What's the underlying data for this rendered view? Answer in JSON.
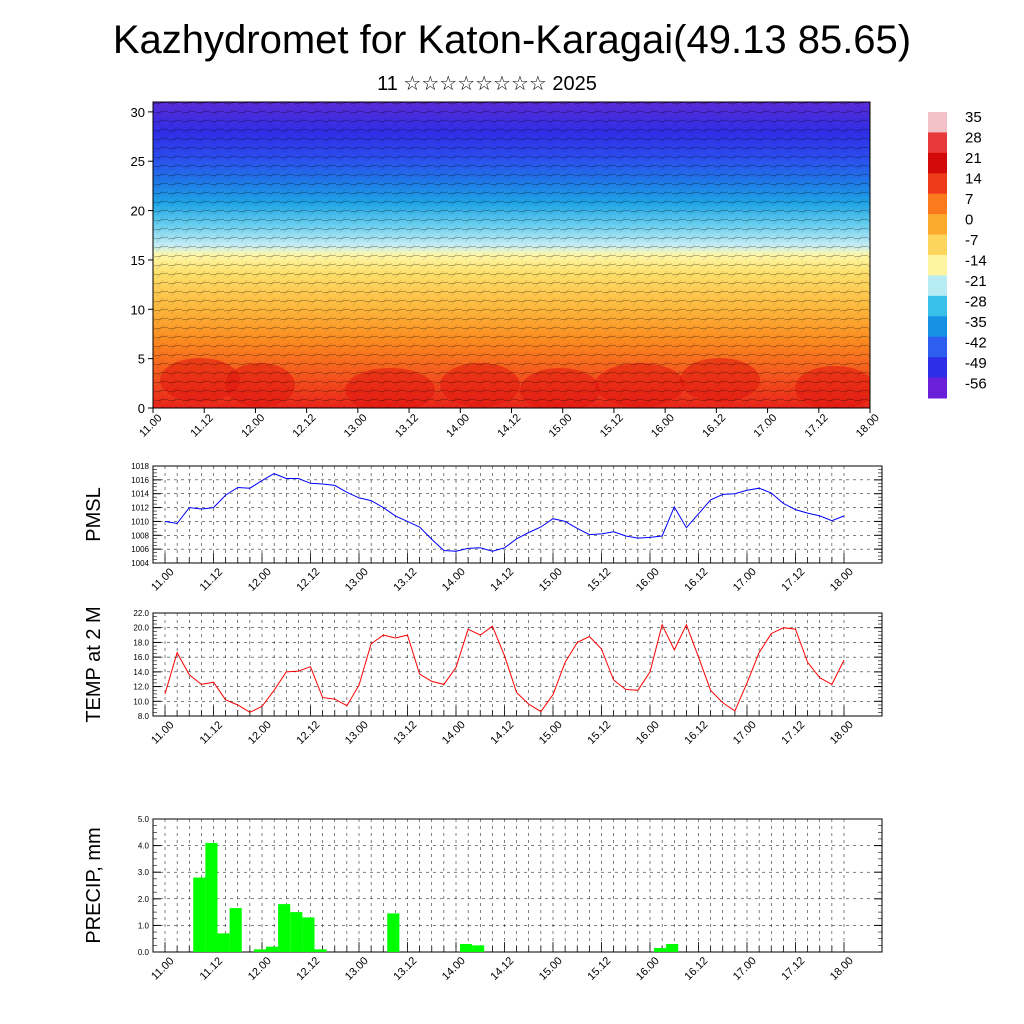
{
  "title": "Kazhydromet for Katon-Karagai(49.13 85.65)",
  "subtitle": "11 ☆☆☆☆☆☆☆☆ 2025",
  "time_labels": [
    "11.00",
    "11.12",
    "12.00",
    "12.12",
    "13.00",
    "13.12",
    "14.00",
    "14.12",
    "15.00",
    "15.12",
    "16.00",
    "16.12",
    "17.00",
    "17.12",
    "18.00"
  ],
  "colors": {
    "pmsl": "#0000ff",
    "temp": "#ff0000",
    "precip": "#00ff00"
  },
  "chart_data": [
    {
      "type": "heatmap",
      "name": "cross-section",
      "description_ylabels": [
        "0",
        "5",
        "10",
        "15",
        "20",
        "25",
        "30"
      ],
      "ylim": [
        0,
        31
      ],
      "colorbar_labels": [
        "35",
        "28",
        "21",
        "14",
        "7",
        "0",
        "-7",
        "-14",
        "-21",
        "-28",
        "-35",
        "-42",
        "-49",
        "-56"
      ],
      "colorbar_colors": [
        "#f3c1c8",
        "#e83a3a",
        "#d40a0a",
        "#ef3a1a",
        "#fb7a1e",
        "#fdab2e",
        "#fdd55c",
        "#fff5a0",
        "#b7ecf5",
        "#39c0ea",
        "#1590e2",
        "#2e5ef0",
        "#2d2fe6",
        "#6a1fd8"
      ]
    },
    {
      "type": "line",
      "ylabel": "PMSL",
      "ylim": [
        1004,
        1018
      ],
      "yticks": [
        "1018",
        "1016",
        "1014",
        "1012",
        "1010",
        "1008",
        "1006",
        "1004"
      ],
      "series": [
        {
          "values": [
            1010.0,
            1009.7,
            1012.0,
            1011.8,
            1012.0,
            1013.8,
            1014.9,
            1014.8,
            1015.9,
            1016.9,
            1016.2,
            1016.2,
            1015.5,
            1015.4,
            1015.2,
            1014.2,
            1013.4,
            1013.0,
            1012.0,
            1010.8,
            1010.0,
            1009.2,
            1007.4,
            1005.8,
            1005.7,
            1006.1,
            1006.2,
            1005.7,
            1006.2,
            1007.5,
            1008.4,
            1009.2,
            1010.4,
            1010.0,
            1009.0,
            1008.1,
            1008.2,
            1008.5,
            1007.9,
            1007.6,
            1007.7,
            1007.9,
            1012.1,
            1009.1,
            1011.1,
            1013.1,
            1013.9,
            1014.0,
            1014.5,
            1014.8,
            1014.1,
            1012.6,
            1011.7,
            1011.2,
            1010.8,
            1010.1,
            1010.8
          ]
        }
      ]
    },
    {
      "type": "line",
      "ylabel": "TEMP at 2 M",
      "ylim": [
        8.0,
        22.0
      ],
      "yticks": [
        "22.0",
        "20.0",
        "18.0",
        "16.0",
        "14.0",
        "12.0",
        "10.0",
        "8.0"
      ],
      "series": [
        {
          "values": [
            11.0,
            16.6,
            13.6,
            12.3,
            12.6,
            10.2,
            9.5,
            8.5,
            9.3,
            11.5,
            14.0,
            14.1,
            14.7,
            10.5,
            10.3,
            9.4,
            12.2,
            17.8,
            19.0,
            18.6,
            19.0,
            13.7,
            12.7,
            12.3,
            14.6,
            19.8,
            19.0,
            20.2,
            16.2,
            11.2,
            9.6,
            8.6,
            10.9,
            15.3,
            18.0,
            18.8,
            17.1,
            12.9,
            11.6,
            11.5,
            14.0,
            20.4,
            17.0,
            20.4,
            16.0,
            11.5,
            9.8,
            8.7,
            12.5,
            16.6,
            19.2,
            20.0,
            19.8,
            15.3,
            13.2,
            12.3,
            15.6
          ]
        }
      ]
    },
    {
      "type": "bar",
      "ylabel": "PRECIP, mm",
      "ylim": [
        0,
        5.0
      ],
      "yticks": [
        "5.0",
        "4.0",
        "3.0",
        "2.0",
        "1.0",
        "0.0"
      ],
      "series": [
        {
          "values": [
            0,
            0,
            2.8,
            4.1,
            0.7,
            1.65,
            0,
            0.1,
            0.2,
            1.8,
            1.5,
            1.3,
            0.1,
            0,
            0,
            0,
            0,
            0,
            1.45,
            0,
            0,
            0,
            0,
            0,
            0.3,
            0.25,
            0,
            0,
            0,
            0,
            0,
            0,
            0,
            0,
            0,
            0,
            0,
            0,
            0,
            0,
            0.15,
            0.3,
            0,
            0,
            0,
            0,
            0,
            0,
            0,
            0,
            0,
            0,
            0,
            0,
            0,
            0
          ]
        }
      ]
    }
  ]
}
